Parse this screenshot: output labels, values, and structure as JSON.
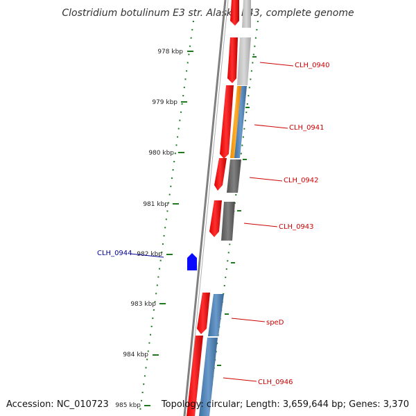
{
  "title": "Clostridium botulinum E3 str. Alaska E43, complete genome",
  "footer": {
    "accession": "Accession: NC_010723",
    "summary": "Topology: circular; Length: 3,659,644 bp; Genes: 3,370"
  },
  "colors": {
    "forward_gene": "#ff1a1a",
    "reverse_gene": "#0a0aff",
    "ticks": "#1f7a1f",
    "forward_label": "#cc0000",
    "reverse_label": "#000099",
    "backbone": "#808080"
  },
  "scale": {
    "labels": [
      "978 kbp",
      "979 kbp",
      "980 kbp",
      "981 kbp",
      "982 kbp",
      "983 kbp",
      "984 kbp",
      "985 kbp"
    ]
  },
  "gene_labels": [
    {
      "text": "CLH_0940",
      "strand": "forward"
    },
    {
      "text": "CLH_0941",
      "strand": "forward"
    },
    {
      "text": "CLH_0942",
      "strand": "forward"
    },
    {
      "text": "CLH_0943",
      "strand": "forward"
    },
    {
      "text": "CLH_0944",
      "strand": "reverse"
    },
    {
      "text": "speD",
      "strand": "forward"
    },
    {
      "text": "CLH_0946",
      "strand": "forward"
    }
  ]
}
